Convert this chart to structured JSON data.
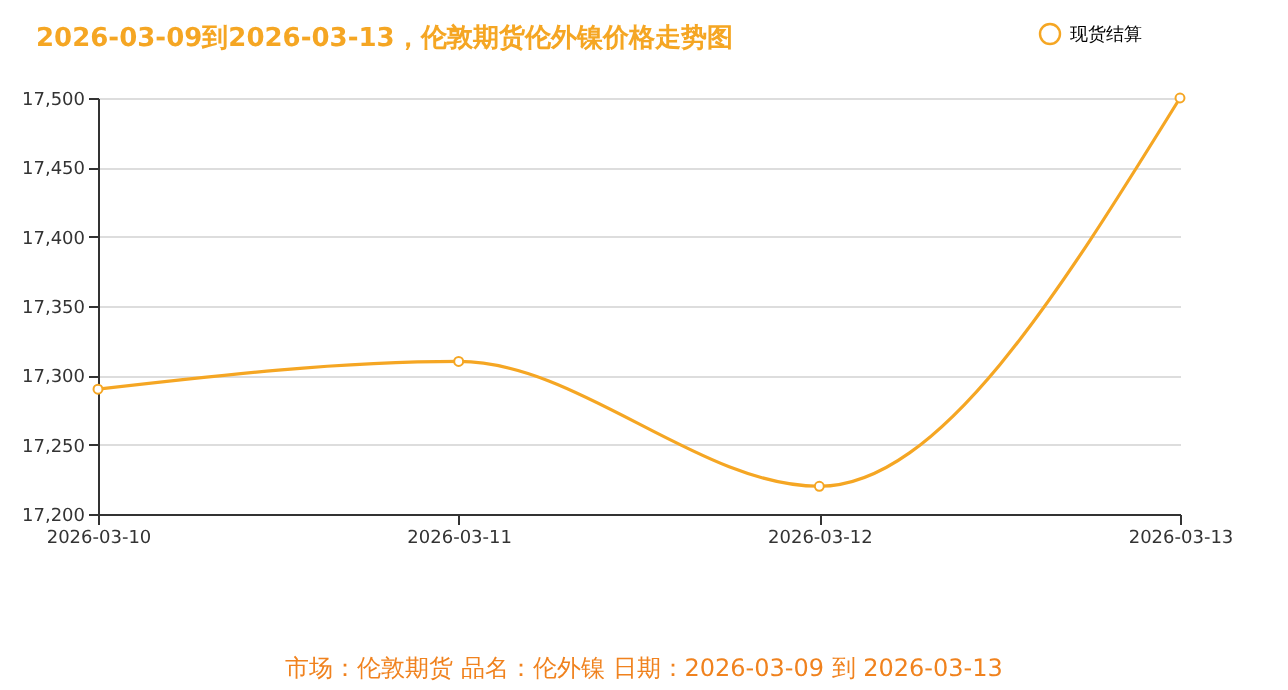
{
  "chart_data": {
    "type": "line",
    "title": "2026-03-09到2026-03-13，伦敦期货伦外镍价格走势图",
    "categories": [
      "2026-03-10",
      "2026-03-11",
      "2026-03-12",
      "2026-03-13"
    ],
    "series": [
      {
        "name": "现货结算",
        "color": "#f5a623",
        "values": [
          17290,
          17310,
          17220,
          17500
        ]
      }
    ],
    "ylim": [
      17200,
      17500
    ],
    "yticks": [
      {
        "value": 17200,
        "label": "17,200"
      },
      {
        "value": 17250,
        "label": "17,250"
      },
      {
        "value": 17300,
        "label": "17,300"
      },
      {
        "value": 17350,
        "label": "17,350"
      },
      {
        "value": 17400,
        "label": "17,400"
      },
      {
        "value": 17450,
        "label": "17,450"
      },
      {
        "value": 17500,
        "label": "17,500"
      }
    ],
    "grid": "y",
    "legend": "top right",
    "marker": "circle",
    "line_style": "solid",
    "annotations": [
      "市场：伦敦期货   品名：伦外镍   日期：2026-03-09 到 2026-03-13"
    ]
  }
}
